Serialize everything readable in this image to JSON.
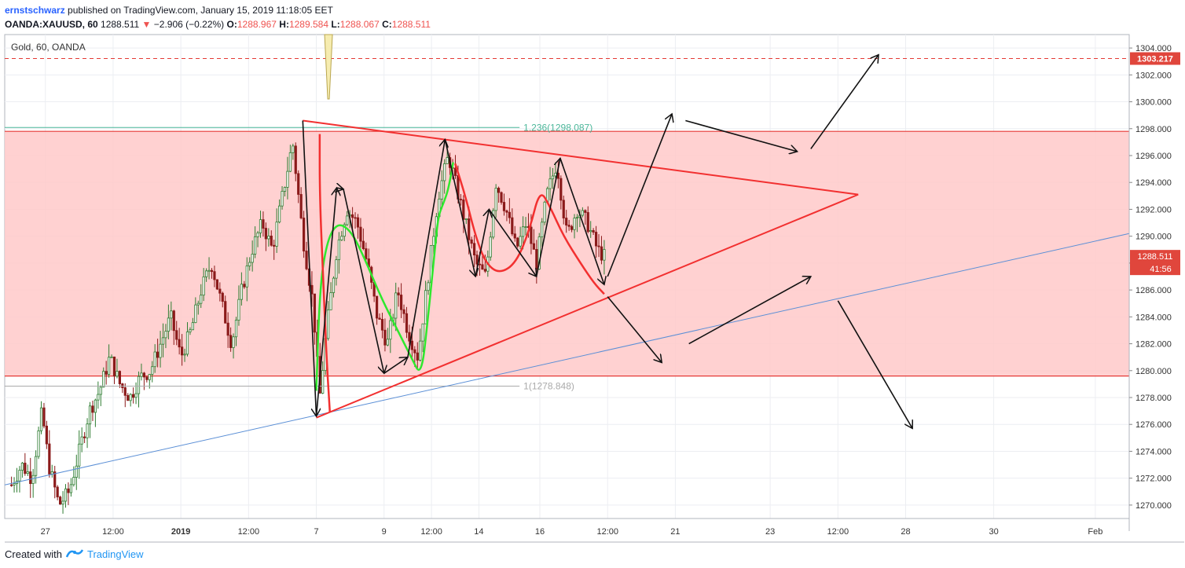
{
  "header": {
    "author": "ernstschwarz",
    "published": "published on TradingView.com, January 15, 2019 11:18:05 EET",
    "symbol": "OANDA:XAUUSD, 60",
    "last": "1288.511",
    "change": "−2.906 (−0.22%)",
    "o_label": "O:",
    "o": "1288.967",
    "h_label": "H:",
    "h": "1289.584",
    "l_label": "L:",
    "l": "1288.067",
    "c_label": "C:",
    "c": "1288.511"
  },
  "legend": "Gold, 60, OANDA",
  "footer": {
    "created_with": "Created with",
    "brand": "TradingView"
  },
  "colors": {
    "zone": "#ffc9c9",
    "red": "#f23030",
    "green": "#2ee82e",
    "blue": "#5b8fd6",
    "teal": "#4cb79a",
    "price_tag": "#e0463c"
  },
  "chart_data": {
    "type": "candlestick",
    "title": "Gold, 60, OANDA",
    "ylim": [
      1269,
      1305
    ],
    "y_ticks": [
      1270,
      1272,
      1274,
      1276,
      1278,
      1280,
      1282,
      1284,
      1286,
      1288,
      1290,
      1292,
      1294,
      1296,
      1298,
      1300,
      1302,
      1304
    ],
    "y_tick_labels": [
      "1270.000",
      "1272.000",
      "1274.000",
      "1276.000",
      "1278.000",
      "1280.000",
      "1282.000",
      "1284.000",
      "1286.000",
      "1288.000",
      "1290.000",
      "1292.000",
      "1294.000",
      "1296.000",
      "1298.000",
      "1300.000",
      "1302.000",
      "1304.000"
    ],
    "x_ticks": [
      {
        "t": 0.5,
        "label": "27"
      },
      {
        "t": 1.5,
        "label": "12:00"
      },
      {
        "t": 2.5,
        "label": "2019"
      },
      {
        "t": 3.5,
        "label": "12:00"
      },
      {
        "t": 4.5,
        "label": "7"
      },
      {
        "t": 5.5,
        "label": "9"
      },
      {
        "t": 6.2,
        "label": "12:00"
      },
      {
        "t": 6.9,
        "label": "14"
      },
      {
        "t": 7.8,
        "label": "16"
      },
      {
        "t": 8.8,
        "label": "12:00"
      },
      {
        "t": 9.8,
        "label": "21"
      },
      {
        "t": 11.2,
        "label": "23"
      },
      {
        "t": 12.2,
        "label": "12:00"
      },
      {
        "t": 13.2,
        "label": "28"
      },
      {
        "t": 14.5,
        "label": "30"
      },
      {
        "t": 16.0,
        "label": "Feb"
      }
    ],
    "x_range": [
      -0.1,
      16.5
    ],
    "candle_path": [
      [
        0.0,
        1271.5
      ],
      [
        0.15,
        1273
      ],
      [
        0.3,
        1272
      ],
      [
        0.45,
        1277
      ],
      [
        0.55,
        1273
      ],
      [
        0.7,
        1270
      ],
      [
        0.85,
        1271
      ],
      [
        1.0,
        1274
      ],
      [
        1.15,
        1277
      ],
      [
        1.3,
        1278.5
      ],
      [
        1.45,
        1281
      ],
      [
        1.6,
        1279
      ],
      [
        1.75,
        1278
      ],
      [
        1.9,
        1279.5
      ],
      [
        2.05,
        1280
      ],
      [
        2.2,
        1282
      ],
      [
        2.35,
        1284
      ],
      [
        2.5,
        1281
      ],
      [
        2.65,
        1283
      ],
      [
        2.8,
        1286
      ],
      [
        2.95,
        1288
      ],
      [
        3.1,
        1285
      ],
      [
        3.25,
        1282
      ],
      [
        3.4,
        1286
      ],
      [
        3.55,
        1289
      ],
      [
        3.7,
        1291
      ],
      [
        3.85,
        1289
      ],
      [
        4.0,
        1293
      ],
      [
        4.15,
        1297
      ],
      [
        4.3,
        1290
      ],
      [
        4.45,
        1285
      ],
      [
        4.55,
        1278
      ],
      [
        4.65,
        1283
      ],
      [
        4.8,
        1289
      ],
      [
        4.95,
        1292
      ],
      [
        5.1,
        1291
      ],
      [
        5.25,
        1288
      ],
      [
        5.4,
        1284
      ],
      [
        5.55,
        1282
      ],
      [
        5.7,
        1286
      ],
      [
        5.85,
        1283
      ],
      [
        6.0,
        1281
      ],
      [
        6.15,
        1287
      ],
      [
        6.3,
        1293
      ],
      [
        6.45,
        1296
      ],
      [
        6.55,
        1294
      ],
      [
        6.7,
        1291
      ],
      [
        6.85,
        1288
      ],
      [
        7.0,
        1287
      ],
      [
        7.15,
        1294
      ],
      [
        7.3,
        1292
      ],
      [
        7.45,
        1289
      ],
      [
        7.6,
        1291
      ],
      [
        7.75,
        1288
      ],
      [
        7.9,
        1293
      ],
      [
        8.05,
        1295.5
      ],
      [
        8.2,
        1290
      ],
      [
        8.35,
        1292
      ],
      [
        8.5,
        1291
      ],
      [
        8.65,
        1289
      ],
      [
        8.75,
        1288.5
      ]
    ],
    "current_price": 1288.511,
    "current_price_label": "1288.511",
    "countdown": "41:56",
    "alert_price": 1303.217,
    "alert_price_label": "1303.217",
    "zone": {
      "from": 1279.6,
      "to": 1297.8
    },
    "fib_levels": [
      {
        "price": 1298.087,
        "label": "1.236(1298.087)"
      },
      {
        "price": 1278.848,
        "label": "1(1278.848)"
      }
    ],
    "triangle": {
      "upper": [
        [
          4.3,
          1298.6
        ],
        [
          12.5,
          1293.1
        ]
      ],
      "lower": [
        [
          4.5,
          1276.5
        ],
        [
          12.5,
          1293.1
        ]
      ]
    },
    "trendline": [
      [
        -0.1,
        1271.5
      ],
      [
        16.5,
        1290.2
      ]
    ],
    "zigzag_black": [
      [
        4.3,
        1298.6
      ],
      [
        4.5,
        1276.6
      ],
      [
        4.8,
        1293.6
      ],
      [
        4.9,
        1293.5
      ],
      [
        5.5,
        1279.8
      ],
      [
        5.85,
        1281.0
      ],
      [
        6.4,
        1297.2
      ],
      [
        6.85,
        1287.0
      ],
      [
        7.05,
        1292.0
      ],
      [
        7.75,
        1287.0
      ],
      [
        8.1,
        1295.8
      ],
      [
        8.75,
        1286.4
      ]
    ],
    "green_curve": [
      [
        4.5,
        1278.5
      ],
      [
        4.55,
        1286
      ],
      [
        4.65,
        1289.5
      ],
      [
        4.8,
        1291
      ],
      [
        5.0,
        1290.5
      ],
      [
        5.2,
        1288.5
      ],
      [
        5.45,
        1285.5
      ],
      [
        5.7,
        1283
      ],
      [
        5.9,
        1281
      ],
      [
        6.05,
        1279.5
      ],
      [
        6.15,
        1284
      ],
      [
        6.25,
        1289
      ],
      [
        6.3,
        1291.5
      ],
      [
        6.38,
        1292.5
      ],
      [
        6.45,
        1293.5
      ],
      [
        6.52,
        1295.5
      ]
    ],
    "red_curve_1": [
      [
        4.55,
        1297.6
      ],
      [
        4.55,
        1293
      ],
      [
        4.6,
        1287
      ],
      [
        4.65,
        1281
      ],
      [
        4.7,
        1276.9
      ]
    ],
    "red_curve_2": [
      [
        6.55,
        1295.4
      ],
      [
        6.7,
        1293
      ],
      [
        6.85,
        1290
      ],
      [
        7.0,
        1288
      ],
      [
        7.2,
        1287.2
      ],
      [
        7.45,
        1288
      ],
      [
        7.65,
        1290.5
      ],
      [
        7.8,
        1293.5
      ],
      [
        7.95,
        1292.2
      ],
      [
        8.15,
        1290
      ],
      [
        8.4,
        1288
      ],
      [
        8.6,
        1286.5
      ],
      [
        8.75,
        1285.7
      ]
    ],
    "forecast_arrows": [
      [
        [
          8.8,
          1287.0
        ],
        [
          9.75,
          1299.1
        ]
      ],
      [
        [
          9.95,
          1298.6
        ],
        [
          11.6,
          1296.3
        ]
      ],
      [
        [
          11.8,
          1296.5
        ],
        [
          12.8,
          1303.5
        ]
      ],
      [
        [
          8.8,
          1285.5
        ],
        [
          9.6,
          1280.6
        ]
      ],
      [
        [
          10.0,
          1282.0
        ],
        [
          11.8,
          1287.0
        ]
      ],
      [
        [
          12.2,
          1285.2
        ],
        [
          13.3,
          1275.7
        ]
      ]
    ]
  }
}
